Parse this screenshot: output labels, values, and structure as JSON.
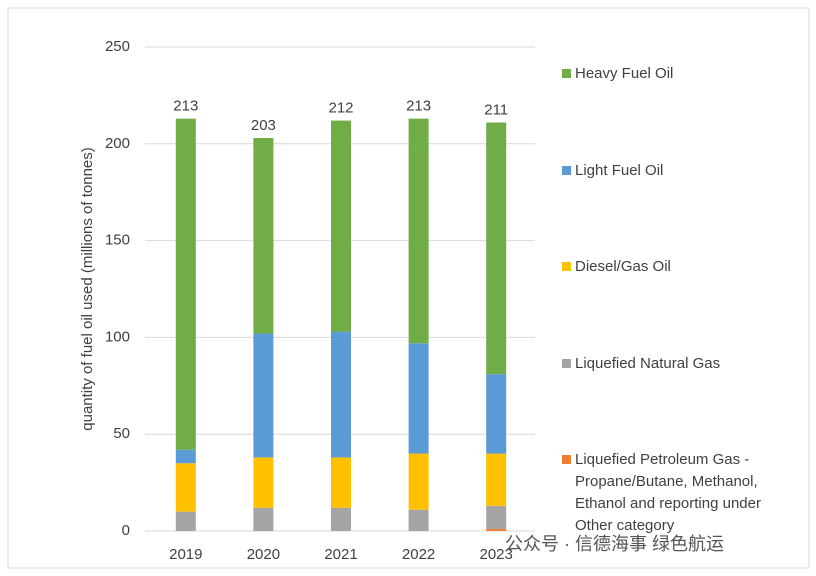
{
  "chart_data": {
    "type": "stacked_bar",
    "y_label": "quantity of fuel oil used (millions of tonnes)",
    "categories": [
      "2019",
      "2020",
      "2021",
      "2022",
      "2023"
    ],
    "series": [
      {
        "name": "Liquefied Petroleum Gas - Propane/Butane, Methanol, Ethanol and reporting under Other category",
        "color": "#ed7d31",
        "values": [
          0,
          0,
          0,
          0,
          1
        ]
      },
      {
        "name": "Liquefied Natural Gas",
        "color": "#a5a5a5",
        "values": [
          10,
          12,
          12,
          11,
          12
        ]
      },
      {
        "name": "Diesel/Gas Oil",
        "color": "#ffc000",
        "values": [
          25,
          26,
          26,
          29,
          27
        ]
      },
      {
        "name": "Light Fuel Oil",
        "color": "#5b9bd5",
        "values": [
          7,
          64,
          65,
          57,
          41
        ]
      },
      {
        "name": "Heavy Fuel Oil",
        "color": "#70ad47",
        "values": [
          171,
          101,
          109,
          116,
          130
        ]
      }
    ],
    "totals": [
      213,
      203,
      212,
      213,
      211
    ],
    "ylim": [
      0,
      250
    ],
    "yticks": [
      0,
      50,
      100,
      150,
      200,
      250
    ],
    "grid": true,
    "watermark": "公众号 · 信德海事 绿色航运"
  }
}
